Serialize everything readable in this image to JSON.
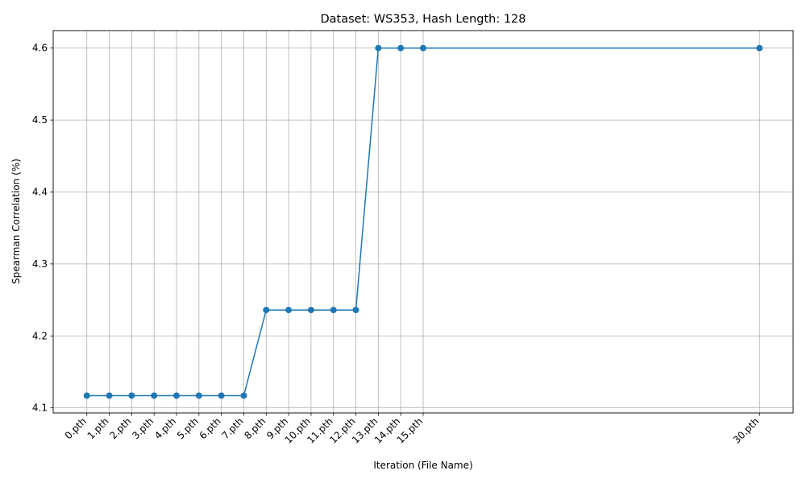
{
  "chart_data": {
    "type": "line",
    "title": "Dataset: WS353, Hash Length: 128",
    "xlabel": "Iteration (File Name)",
    "ylabel": "Spearman Correlation (%)",
    "x": [
      0,
      1,
      2,
      3,
      4,
      5,
      6,
      7,
      8,
      9,
      10,
      11,
      12,
      13,
      14,
      15,
      30
    ],
    "x_tick_labels": [
      "0.pth",
      "1.pth",
      "2.pth",
      "3.pth",
      "4.pth",
      "5.pth",
      "6.pth",
      "7.pth",
      "8.pth",
      "9.pth",
      "10.pth",
      "11.pth",
      "12.pth",
      "13.pth",
      "14.pth",
      "15.pth",
      "30.pth"
    ],
    "series": [
      {
        "values": [
          4.117,
          4.117,
          4.117,
          4.117,
          4.117,
          4.117,
          4.117,
          4.117,
          4.236,
          4.236,
          4.236,
          4.236,
          4.236,
          4.6,
          4.6,
          4.6,
          4.6
        ],
        "color": "#1f77b4",
        "marker": "circle"
      }
    ],
    "y_ticks": [
      4.1,
      4.2,
      4.3,
      4.4,
      4.5,
      4.6
    ],
    "y_tick_labels": [
      "4.1",
      "4.2",
      "4.3",
      "4.4",
      "4.5",
      "4.6"
    ],
    "xlim": [
      -1.5,
      31.5
    ],
    "ylim": [
      4.0929,
      4.6243
    ],
    "grid": true,
    "legend": "none"
  }
}
